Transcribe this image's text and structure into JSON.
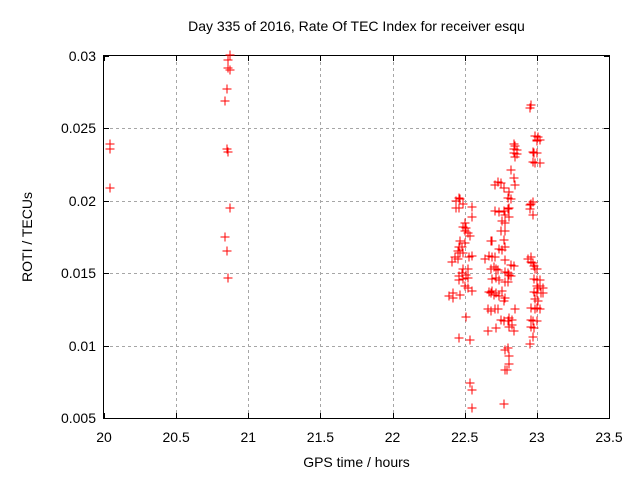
{
  "chart_data": {
    "type": "scatter",
    "title": "Day 335 of 2016, Rate Of TEC Index for receiver esqu",
    "xlabel": "GPS time / hours",
    "ylabel": "ROTI / TECUs",
    "xlim": [
      20,
      23.5
    ],
    "ylim": [
      0.005,
      0.03
    ],
    "x_tick_values": [
      20,
      20.5,
      21,
      21.5,
      22,
      22.5,
      23,
      23.5
    ],
    "x_tick_labels": [
      "20",
      "20.5",
      "21",
      "21.5",
      "22",
      "22.5",
      "23",
      "23.5"
    ],
    "y_tick_values": [
      0.005,
      0.01,
      0.015,
      0.02,
      0.025,
      0.03
    ],
    "y_tick_labels": [
      "0.005",
      "0.01",
      "0.015",
      "0.02",
      "0.025",
      "0.03"
    ],
    "grid": true,
    "legend_position": "none",
    "marker": "plus",
    "marker_color": "#ff0000",
    "grid_color": "#a6a6a6",
    "series": [
      {
        "name": "ROTI",
        "points": [
          [
            20.04,
            0.0239
          ],
          [
            20.04,
            0.0236
          ],
          [
            20.04,
            0.0209
          ],
          [
            20.87,
            0.0301
          ],
          [
            20.86,
            0.0297
          ],
          [
            20.86,
            0.0292
          ],
          [
            20.87,
            0.029
          ],
          [
            20.85,
            0.0277
          ],
          [
            20.84,
            0.0269
          ],
          [
            20.85,
            0.0236
          ],
          [
            20.86,
            0.0234
          ],
          [
            20.87,
            0.0195
          ],
          [
            20.84,
            0.0175
          ],
          [
            20.85,
            0.0165
          ],
          [
            20.86,
            0.0147
          ],
          [
            22.44,
            0.02
          ],
          [
            22.46,
            0.0202
          ],
          [
            22.47,
            0.0201
          ],
          [
            22.49,
            0.0198
          ],
          [
            22.44,
            0.0195
          ],
          [
            22.46,
            0.0195
          ],
          [
            22.55,
            0.0196
          ],
          [
            22.55,
            0.0189
          ],
          [
            22.5,
            0.0185
          ],
          [
            22.49,
            0.0182
          ],
          [
            22.51,
            0.0181
          ],
          [
            22.5,
            0.0179
          ],
          [
            22.52,
            0.0178
          ],
          [
            22.54,
            0.0176
          ],
          [
            22.47,
            0.0172
          ],
          [
            22.5,
            0.0171
          ],
          [
            22.46,
            0.0168
          ],
          [
            22.48,
            0.0168
          ],
          [
            22.45,
            0.0165
          ],
          [
            22.47,
            0.0164
          ],
          [
            22.49,
            0.0164
          ],
          [
            22.53,
            0.0161
          ],
          [
            22.55,
            0.0162
          ],
          [
            22.43,
            0.0161
          ],
          [
            22.45,
            0.016
          ],
          [
            22.41,
            0.0158
          ],
          [
            22.49,
            0.0153
          ],
          [
            22.52,
            0.0153
          ],
          [
            22.48,
            0.015
          ],
          [
            22.51,
            0.0149
          ],
          [
            22.46,
            0.0148
          ],
          [
            22.46,
            0.0145
          ],
          [
            22.49,
            0.0146
          ],
          [
            22.52,
            0.0147
          ],
          [
            22.5,
            0.0141
          ],
          [
            22.52,
            0.014
          ],
          [
            22.55,
            0.0138
          ],
          [
            22.42,
            0.0136
          ],
          [
            22.47,
            0.0135
          ],
          [
            22.39,
            0.0134
          ],
          [
            22.42,
            0.0133
          ],
          [
            22.51,
            0.012
          ],
          [
            22.46,
            0.0105
          ],
          [
            22.54,
            0.0104
          ],
          [
            22.54,
            0.0074
          ],
          [
            22.55,
            0.0069
          ],
          [
            22.55,
            0.0057
          ],
          [
            22.82,
            0.0221
          ],
          [
            22.84,
            0.0216
          ],
          [
            22.73,
            0.0213
          ],
          [
            22.75,
            0.0212
          ],
          [
            22.71,
            0.0211
          ],
          [
            22.77,
            0.0209
          ],
          [
            22.85,
            0.0211
          ],
          [
            22.81,
            0.0206
          ],
          [
            22.8,
            0.0202
          ],
          [
            22.82,
            0.0201
          ],
          [
            22.81,
            0.0195
          ],
          [
            22.8,
            0.0194
          ],
          [
            22.77,
            0.0193
          ],
          [
            22.71,
            0.0193
          ],
          [
            22.74,
            0.0192
          ],
          [
            22.78,
            0.019
          ],
          [
            22.81,
            0.0189
          ],
          [
            22.76,
            0.0186
          ],
          [
            22.78,
            0.0185
          ],
          [
            22.75,
            0.0179
          ],
          [
            22.78,
            0.0179
          ],
          [
            22.68,
            0.0172
          ],
          [
            22.69,
            0.0172
          ],
          [
            22.77,
            0.0173
          ],
          [
            22.78,
            0.0168
          ],
          [
            22.74,
            0.0167
          ],
          [
            22.76,
            0.0166
          ],
          [
            22.64,
            0.016
          ],
          [
            22.67,
            0.0162
          ],
          [
            22.69,
            0.0161
          ],
          [
            22.71,
            0.0161
          ],
          [
            22.78,
            0.0159
          ],
          [
            22.82,
            0.0156
          ],
          [
            22.84,
            0.0155
          ],
          [
            22.7,
            0.0154
          ],
          [
            22.72,
            0.0153
          ],
          [
            22.68,
            0.0153
          ],
          [
            22.73,
            0.0152
          ],
          [
            22.81,
            0.0149
          ],
          [
            22.82,
            0.0148
          ],
          [
            22.69,
            0.0146
          ],
          [
            22.72,
            0.0147
          ],
          [
            22.74,
            0.0145
          ],
          [
            22.76,
            0.0138
          ],
          [
            22.67,
            0.0137
          ],
          [
            22.69,
            0.0138
          ],
          [
            22.68,
            0.0136
          ],
          [
            22.7,
            0.0135
          ],
          [
            22.72,
            0.0136
          ],
          [
            22.74,
            0.0134
          ],
          [
            22.78,
            0.0133
          ],
          [
            22.77,
            0.0131
          ],
          [
            22.66,
            0.0125
          ],
          [
            22.68,
            0.0124
          ],
          [
            22.71,
            0.0125
          ],
          [
            22.73,
            0.0125
          ],
          [
            22.75,
            0.0118
          ],
          [
            22.77,
            0.0117
          ],
          [
            22.72,
            0.0112
          ],
          [
            22.66,
            0.011
          ],
          [
            22.81,
            0.0093
          ],
          [
            22.81,
            0.0087
          ],
          [
            22.79,
            0.0083
          ],
          [
            22.78,
            0.0083
          ],
          [
            22.77,
            0.006
          ],
          [
            22.96,
            0.0266
          ],
          [
            22.95,
            0.0264
          ],
          [
            22.99,
            0.0245
          ],
          [
            23.01,
            0.0244
          ],
          [
            23.0,
            0.0242
          ],
          [
            23.02,
            0.0242
          ],
          [
            23.0,
            0.0241
          ],
          [
            22.84,
            0.0239
          ],
          [
            22.85,
            0.0238
          ],
          [
            22.84,
            0.0236
          ],
          [
            22.86,
            0.0235
          ],
          [
            22.84,
            0.0233
          ],
          [
            22.86,
            0.0232
          ],
          [
            22.85,
            0.023
          ],
          [
            22.97,
            0.0234
          ],
          [
            22.98,
            0.0233
          ],
          [
            23.0,
            0.0233
          ],
          [
            22.97,
            0.0227
          ],
          [
            22.99,
            0.0226
          ],
          [
            23.02,
            0.0226
          ],
          [
            22.96,
            0.0198
          ],
          [
            22.97,
            0.0199
          ],
          [
            22.95,
            0.0197
          ],
          [
            22.95,
            0.0194
          ],
          [
            22.97,
            0.019
          ],
          [
            22.94,
            0.016
          ],
          [
            22.96,
            0.0161
          ],
          [
            22.96,
            0.0158
          ],
          [
            22.97,
            0.0157
          ],
          [
            22.98,
            0.0155
          ],
          [
            22.99,
            0.0153
          ],
          [
            23.0,
            0.0153
          ],
          [
            22.78,
            0.0151
          ],
          [
            22.8,
            0.015
          ],
          [
            22.78,
            0.0144
          ],
          [
            22.8,
            0.0144
          ],
          [
            22.98,
            0.0146
          ],
          [
            23.0,
            0.0145
          ],
          [
            23.02,
            0.0145
          ],
          [
            23.0,
            0.0141
          ],
          [
            23.02,
            0.0141
          ],
          [
            23.04,
            0.014
          ],
          [
            23.01,
            0.014
          ],
          [
            22.98,
            0.0137
          ],
          [
            23.0,
            0.0136
          ],
          [
            23.03,
            0.0136
          ],
          [
            23.04,
            0.0136
          ],
          [
            22.99,
            0.0132
          ],
          [
            23.01,
            0.0131
          ],
          [
            22.96,
            0.0126
          ],
          [
            22.99,
            0.0125
          ],
          [
            23.0,
            0.0126
          ],
          [
            23.02,
            0.0125
          ],
          [
            22.85,
            0.0125
          ],
          [
            22.81,
            0.0119
          ],
          [
            22.83,
            0.0118
          ],
          [
            22.8,
            0.0117
          ],
          [
            22.83,
            0.0114
          ],
          [
            22.81,
            0.0113
          ],
          [
            22.84,
            0.011
          ],
          [
            22.96,
            0.0118
          ],
          [
            22.97,
            0.0117
          ],
          [
            23.0,
            0.0117
          ],
          [
            22.96,
            0.0113
          ],
          [
            22.98,
            0.0112
          ],
          [
            22.97,
            0.0106
          ],
          [
            22.95,
            0.0101
          ],
          [
            22.8,
            0.0098
          ],
          [
            22.78,
            0.0097
          ]
        ]
      }
    ]
  }
}
